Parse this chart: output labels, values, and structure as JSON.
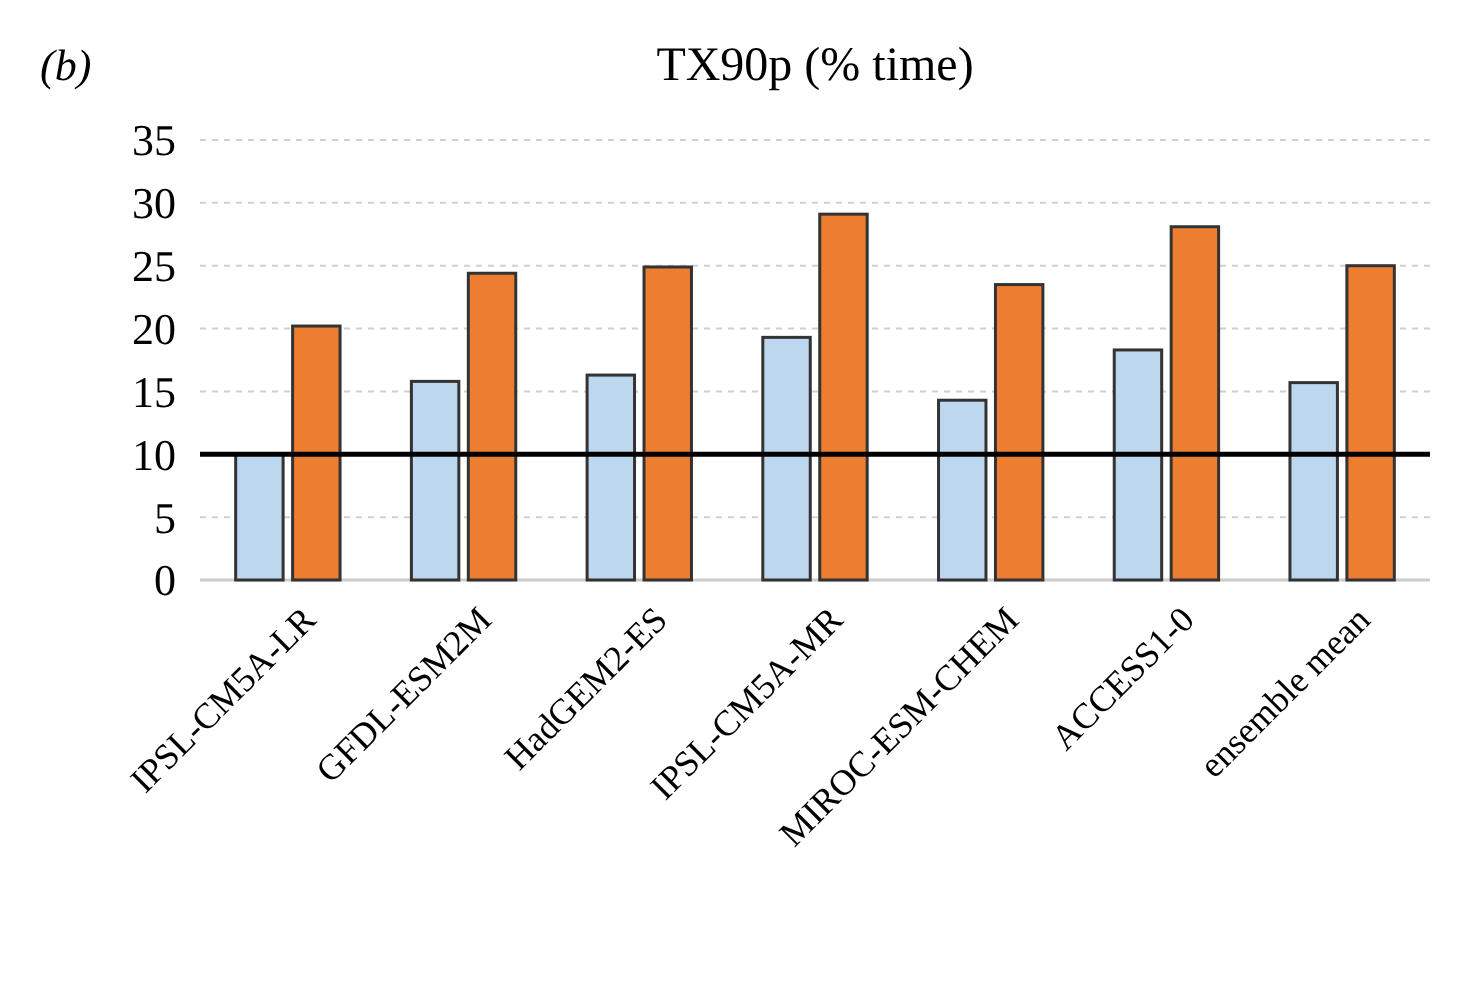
{
  "chart_data": {
    "type": "bar",
    "title": "TX90p (% time)",
    "annotations": [
      "(b)"
    ],
    "categories": [
      "IPSL-CM5A-LR",
      "GFDL-ESM2M",
      "HadGEM2-ES",
      "IPSL-CM5A-MR",
      "MIROC-ESM-CHEM",
      "ACCESS1-0",
      "ensemble mean"
    ],
    "series": [
      {
        "color": "#bdd7ee",
        "values": [
          10,
          15.8,
          16.3,
          19.3,
          14.3,
          18.3,
          15.7
        ]
      },
      {
        "color": "#ed7d31",
        "values": [
          20.2,
          24.4,
          24.9,
          29.1,
          23.5,
          28.1,
          25.0
        ]
      }
    ],
    "ylim": [
      0,
      35
    ],
    "yticks": [
      0,
      5,
      10,
      15,
      20,
      25,
      30,
      35
    ],
    "grid": "y",
    "ref_lines": [
      {
        "axis": "y",
        "value": 10,
        "color": "#000000"
      }
    ]
  }
}
